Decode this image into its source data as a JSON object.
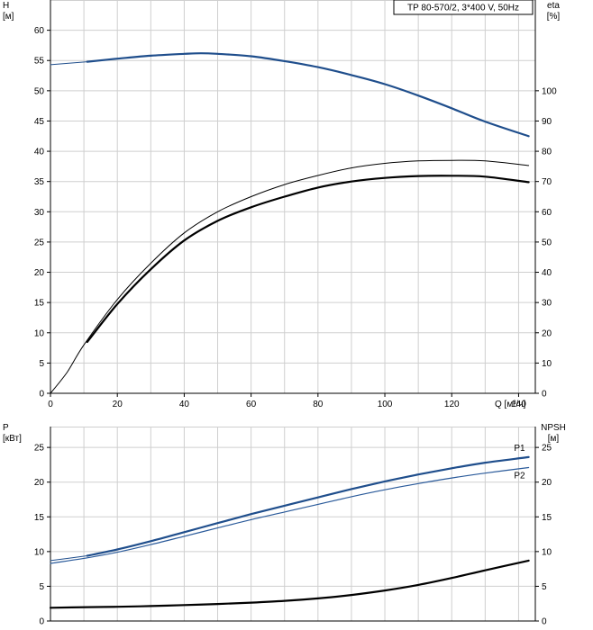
{
  "chart_data": [
    {
      "type": "line",
      "id": "head-efficiency",
      "title": "TP 80-570/2, 3*400 V, 50Hz",
      "xlabel": "Q [м³/ч]",
      "ylabel_left": "H",
      "ylabel_left_unit": "[м]",
      "ylabel_right": "eta",
      "ylabel_right_unit": "[%]",
      "xlim": [
        0,
        145
      ],
      "ylim_left": [
        0,
        65
      ],
      "ylim_right": [
        0,
        130
      ],
      "x_ticks": [
        0,
        20,
        40,
        60,
        80,
        100,
        120,
        140
      ],
      "x_tick_labels": [
        "0",
        "20",
        "40",
        "60",
        "80",
        "100",
        "120",
        "140"
      ],
      "y_left_ticks": [
        0,
        5,
        10,
        15,
        20,
        25,
        30,
        35,
        40,
        45,
        50,
        55,
        60
      ],
      "y_left_tick_labels": [
        "0",
        "5",
        "10",
        "15",
        "20",
        "25",
        "30",
        "35",
        "40",
        "45",
        "50",
        "55",
        "60"
      ],
      "y_right_ticks": [
        0,
        10,
        20,
        30,
        40,
        50,
        60,
        70,
        80,
        90,
        100
      ],
      "y_right_tick_labels": [
        "0",
        "10",
        "20",
        "30",
        "40",
        "50",
        "60",
        "70",
        "80",
        "90",
        "100"
      ],
      "grid": true,
      "series": [
        {
          "axis": "left",
          "color": "#1f4e8c",
          "width": 2.2,
          "x": [
            0,
            11,
            20,
            30,
            40,
            45,
            50,
            60,
            70,
            80,
            90,
            100,
            110,
            120,
            130,
            143
          ],
          "y": [
            54.3,
            54.8,
            55.3,
            55.8,
            56.1,
            56.2,
            56.1,
            55.7,
            54.9,
            53.9,
            52.6,
            51.1,
            49.2,
            47.1,
            44.9,
            42.5
          ],
          "faint_until_x": 11
        },
        {
          "axis": "right",
          "color": "#000000",
          "width": 1,
          "x": [
            0,
            5,
            10,
            20,
            30,
            40,
            50,
            60,
            70,
            80,
            90,
            100,
            110,
            120,
            130,
            143
          ],
          "y": [
            0,
            7,
            16,
            31,
            43,
            53,
            60,
            65,
            69,
            72,
            74.5,
            76,
            76.8,
            77,
            76.8,
            75.3
          ]
        },
        {
          "axis": "right",
          "color": "#000000",
          "width": 2.2,
          "x": [
            11,
            20,
            30,
            40,
            50,
            60,
            70,
            80,
            90,
            100,
            110,
            120,
            130,
            143
          ],
          "y": [
            17,
            29.5,
            41,
            50.5,
            57,
            61.5,
            65,
            68,
            70,
            71.2,
            71.8,
            71.9,
            71.6,
            69.8
          ]
        }
      ]
    },
    {
      "type": "line",
      "id": "power-npsh",
      "ylabel_left": "P",
      "ylabel_left_unit": "[кВт]",
      "ylabel_right": "NPSH",
      "ylabel_right_unit": "[м]",
      "xlim": [
        0,
        145
      ],
      "ylim_left": [
        0,
        28
      ],
      "ylim_right": [
        0,
        28
      ],
      "y_left_ticks": [
        0,
        5,
        10,
        15,
        20,
        25
      ],
      "y_left_tick_labels": [
        "0",
        "5",
        "10",
        "15",
        "20",
        "25"
      ],
      "y_right_ticks": [
        0,
        5,
        10,
        15,
        20,
        25
      ],
      "y_right_tick_labels": [
        "0",
        "5",
        "10",
        "15",
        "20",
        "25"
      ],
      "grid": true,
      "series": [
        {
          "name": "P1",
          "axis": "left",
          "color": "#1f4e8c",
          "width": 2.2,
          "x": [
            0,
            11,
            20,
            30,
            40,
            50,
            60,
            70,
            80,
            90,
            100,
            110,
            120,
            130,
            143
          ],
          "y": [
            8.7,
            9.4,
            10.3,
            11.5,
            12.8,
            14.1,
            15.4,
            16.6,
            17.8,
            19.0,
            20.1,
            21.1,
            22.0,
            22.8,
            23.6
          ],
          "faint_until_x": 11
        },
        {
          "name": "P2",
          "axis": "left",
          "color": "#2a5a9a",
          "width": 1.2,
          "x": [
            0,
            11,
            20,
            30,
            40,
            50,
            60,
            70,
            80,
            90,
            100,
            110,
            120,
            130,
            143
          ],
          "y": [
            8.3,
            9.1,
            9.9,
            11.0,
            12.2,
            13.4,
            14.6,
            15.7,
            16.8,
            17.9,
            18.9,
            19.8,
            20.6,
            21.3,
            22.1
          ]
        },
        {
          "axis": "right",
          "color": "#000000",
          "width": 2.2,
          "x": [
            0,
            11,
            20,
            30,
            40,
            50,
            60,
            70,
            80,
            90,
            100,
            110,
            120,
            130,
            143
          ],
          "y": [
            1.9,
            2.0,
            2.05,
            2.15,
            2.3,
            2.45,
            2.65,
            2.9,
            3.25,
            3.75,
            4.4,
            5.2,
            6.2,
            7.3,
            8.7
          ]
        }
      ]
    }
  ]
}
